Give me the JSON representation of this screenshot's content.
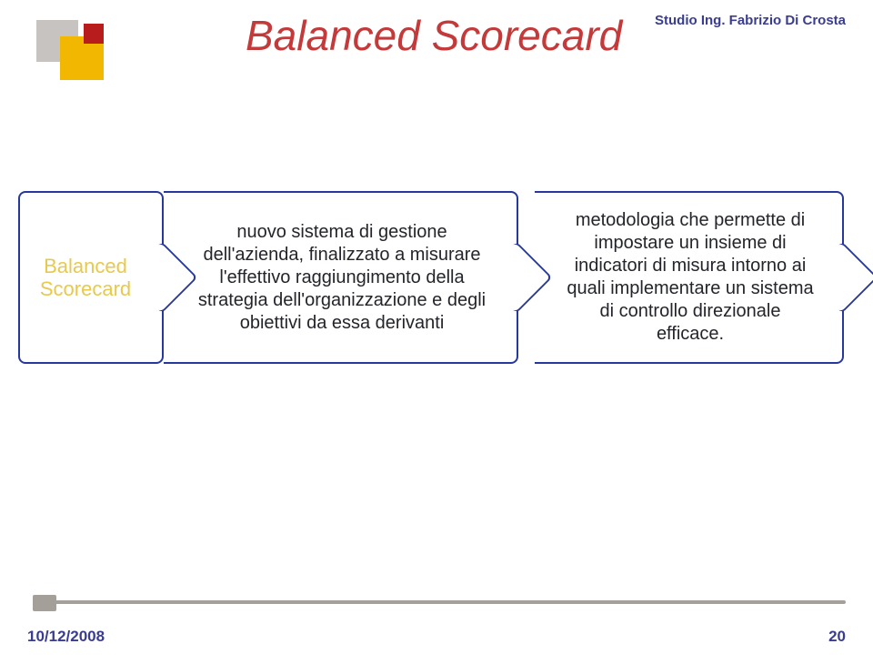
{
  "colors": {
    "title": "#c43a3a",
    "header": "#3a3d8f",
    "chevron_border": "#27389c",
    "chevron_text": "#23252a",
    "chev1_text": "#e7c94d",
    "rule": "#a59f9a",
    "footer": "#3a3d8f"
  },
  "title": "Balanced Scorecard",
  "header": "Studio Ing. Fabrizio Di Crosta",
  "chev1_line1": "Balanced",
  "chev1_line2": "Scorecard",
  "chev2": "nuovo sistema di gestione dell'azienda, finalizzato a misurare l'effettivo raggiungimento della strategia dell'organizzazione e degli obiettivi da essa derivanti",
  "chev3": "metodologia che permette di impostare un insieme di indicatori di misura intorno ai quali implementare un sistema di controllo direzionale efficace.",
  "footer_date": "10/12/2008",
  "footer_page": "20",
  "fontsizes": {
    "title": 46,
    "header": 15,
    "chev1": 22,
    "body": 20,
    "footer": 17
  }
}
